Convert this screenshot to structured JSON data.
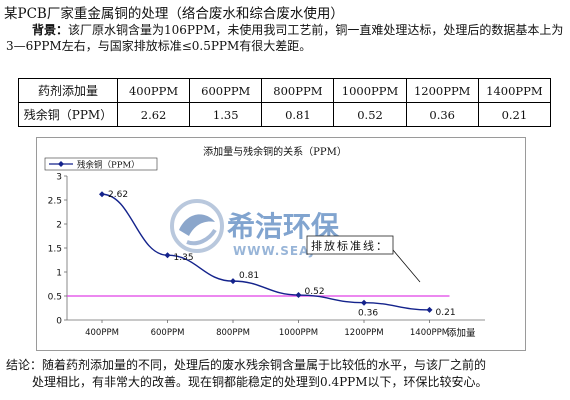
{
  "page": {
    "title": "某PCB厂家重金属铜的处理（络合废水和综合废水使用）",
    "intro_lead": "背景：",
    "intro_text": "该厂原水铜含量为106PPM，未使用我司工艺前，铜一直难处理达标，处理后的数据基本上为3—6PPM左右，与国家排放标准≤0.5PPM有很大差距。",
    "conclusion_line1": "结论：随着药剂添加量的不同，处理后的废水残余铜含量属于比较低的水平，与该厂之前的",
    "conclusion_line2": "处理相比，有非常大的改善。现在铜都能稳定的处理到0.4PPM以下，环保比较安心。"
  },
  "table": {
    "row1_header": "药剂添加量",
    "row2_header": "残余铜（PPM）",
    "doses": [
      "400PPM",
      "600PPM",
      "800PPM",
      "1000PPM",
      "1200PPM",
      "1400PPM"
    ],
    "residuals": [
      "2.62",
      "1.35",
      "0.81",
      "0.52",
      "0.36",
      "0.21"
    ]
  },
  "watermark": {
    "brand_text": "希洁环保",
    "url_text": "WWW.SEAJ",
    "colors": {
      "brand": "#1a5aa8",
      "light": "#9bb3d3"
    }
  },
  "callout": {
    "text": "排放标准线："
  },
  "chart_data": {
    "type": "line",
    "title": "添加量与残余铜的关系（PPM）",
    "xlabel": "添加量",
    "ylabel": "",
    "categories": [
      "400PPM",
      "600PPM",
      "800PPM",
      "1000PPM",
      "1200PPM",
      "1400PPM"
    ],
    "series": [
      {
        "name": "残余铜（PPM）",
        "values": [
          2.62,
          1.35,
          0.81,
          0.52,
          0.36,
          0.21
        ],
        "color": "#14238c"
      }
    ],
    "data_labels": [
      "2.62",
      "1.35",
      "0.81",
      "0.52",
      "0.36",
      "0.21"
    ],
    "reference_line": {
      "value": 0.5,
      "color": "#e040e8"
    },
    "ylim": [
      0,
      3
    ],
    "yticks": [
      "0",
      "0.5",
      "1",
      "1.5",
      "2",
      "2.5",
      "3"
    ],
    "grid": false,
    "legend_position": "top-left",
    "colors": {
      "series": "#14238c",
      "reference": "#e040e8",
      "axis": "#6b6b6b"
    }
  }
}
